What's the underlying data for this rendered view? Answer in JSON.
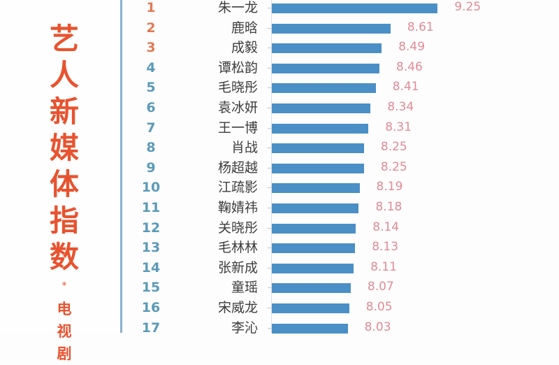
{
  "title": {
    "chars": [
      "艺",
      "人",
      "新",
      "媒",
      "体",
      "指",
      "数"
    ],
    "star": "*",
    "subtitle_chars": [
      "电",
      "视",
      "剧"
    ]
  },
  "colors": {
    "title": "#e8532f",
    "rank_top3": "#e07a55",
    "rank_other": "#5b9ab8",
    "bar": "#4a8fc6",
    "value_label": "#e38a95",
    "divider": "#8bb0cf"
  },
  "chart_data": {
    "type": "bar",
    "orientation": "horizontal",
    "title": "艺人新媒体指数 * 电视剧",
    "xlabel": "",
    "ylabel": "",
    "grid": false,
    "legend": null,
    "categories": [
      "朱一龙",
      "鹿晗",
      "成毅",
      "谭松韵",
      "毛晓彤",
      "袁冰妍",
      "王一博",
      "肖战",
      "杨超越",
      "江疏影",
      "鞠婧祎",
      "关晓彤",
      "毛林林",
      "张新成",
      "童瑶",
      "宋威龙",
      "李沁"
    ],
    "ranks": [
      1,
      2,
      3,
      4,
      5,
      6,
      7,
      8,
      9,
      10,
      11,
      12,
      13,
      14,
      15,
      16,
      17
    ],
    "values": [
      9.25,
      8.61,
      8.49,
      8.46,
      8.41,
      8.34,
      8.31,
      8.25,
      8.25,
      8.19,
      8.18,
      8.14,
      8.13,
      8.11,
      8.07,
      8.05,
      8.03
    ],
    "value_labels": [
      "9.25",
      "8.61",
      "8.49",
      "8.46",
      "8.41",
      "8.34",
      "8.31",
      "8.25",
      "8.25",
      "8.19",
      "8.18",
      "8.14",
      "8.13",
      "8.11",
      "8.07",
      "8.05",
      "8.03"
    ]
  }
}
